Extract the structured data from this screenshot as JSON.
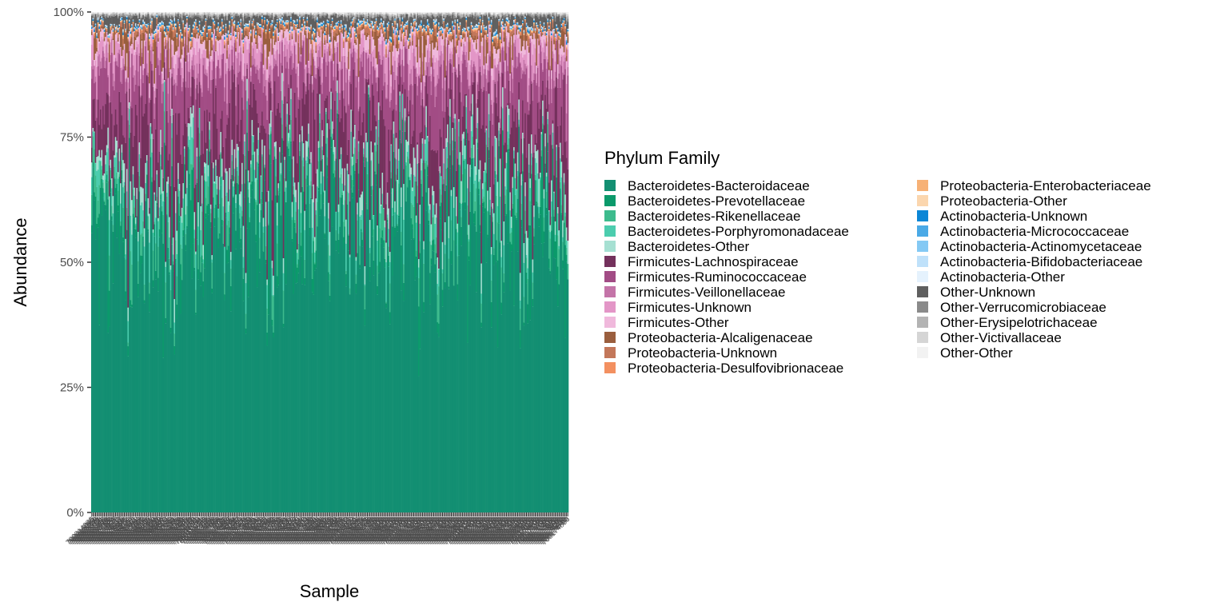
{
  "chart_data": {
    "type": "bar",
    "stacked": true,
    "xlabel": "Sample",
    "ylabel": "Abundance",
    "ylim": [
      0,
      1
    ],
    "y_tick_labels": [
      "0%",
      "25%",
      "50%",
      "75%",
      "100%"
    ],
    "y_ticks": [
      0,
      0.25,
      0.5,
      0.75,
      1
    ],
    "legend_title": "Phylum Family",
    "legend_placement": "right",
    "grid": false,
    "categories": [
      "700014886",
      "700015065",
      "700015181",
      "700015250",
      "700015346",
      "700015578",
      "700015721",
      "700015856",
      "700015981",
      "700016142",
      "700016305",
      "700016456",
      "700016610",
      "700016765",
      "700016960",
      "700017120",
      "700021306",
      "700021824",
      "700023057",
      "700023337",
      "700023578",
      "700023872",
      "700024233",
      "700024437",
      "700024615",
      "700024866",
      "700024998",
      "700033435",
      "700033922",
      "700034254",
      "700034622",
      "700034794",
      "700035157",
      "700035373",
      "700035533",
      "700035861",
      "700037042",
      "700037284",
      "700037539",
      "700037738",
      "700037868",
      "700038072",
      "700038594",
      "700038806",
      "700095213",
      "700095486",
      "700095717",
      "700095831",
      "700096047",
      "700096380",
      "700096700",
      "700097196",
      "700097688",
      "700097837",
      "700098429",
      "700098669",
      "700098986",
      "700099307",
      "700099512",
      "700099803",
      "700100227",
      "700100431",
      "700101534",
      "700101840",
      "700102043",
      "700102242",
      "700102431",
      "700102585",
      "700102905",
      "700103479",
      "700103710",
      "700105049",
      "700105306",
      "700105882",
      "700106198",
      "700106465",
      "700106663",
      "700106876",
      "700107059",
      "700107189",
      "700107547",
      "700107759",
      "700108160",
      "700108341",
      "700109173",
      "700109449",
      "700110354",
      "700110831",
      "700111156",
      "700111222",
      "700111439",
      "700111745",
      "700112312",
      "700112755",
      "700113546",
      "700113867",
      "700114168",
      "700114338",
      "700114478",
      "700114705",
      "700114963",
      "700117069",
      "700117395",
      "700117625",
      "700117755",
      "700117938",
      "700118252",
      "700119165",
      "700119307",
      "700119489",
      "700123827",
      "700124205",
      "700124405",
      "700124589",
      "700124794",
      "700125035",
      "700125190",
      "700125447",
      "700125584",
      "700125840",
      "700126021",
      "700126216",
      "700126340",
      "700126475",
      "700126668",
      "700127110",
      "700127360",
      "700127624",
      "700127808",
      "700128056",
      "700128231",
      "700128521",
      "700128738",
      "700128878",
      "700129054",
      "700129222",
      "700129523",
      "700129724",
      "700129922",
      "700130157",
      "700130401",
      "700130655",
      "700130886",
      "700131043",
      "700131290",
      "700131552",
      "700131752",
      "700131886",
      "700132100",
      "700132260",
      "700132493",
      "700132722",
      "700132935",
      "700133186",
      "700133390",
      "700133621",
      "700133767",
      "700134006",
      "700134195",
      "700134447",
      "700134622",
      "700134803",
      "700134979",
      "700135167",
      "700135340",
      "700135525",
      "700135721",
      "700135895",
      "700136087",
      "700136310",
      "700136570",
      "700136800",
      "700137014",
      "700137228",
      "700137410",
      "700137570",
      "700137779",
      "700137957",
      "700138189",
      "700138401",
      "700138598",
      "700138755",
      "700138951",
      "700139128",
      "700139326",
      "700139480",
      "700139685",
      "700139833",
      "700140016",
      "700140213",
      "700140448",
      "700140669",
      "700140855",
      "700141037",
      "700141240",
      "700141480",
      "700141645",
      "700141836",
      "700142033",
      "700142203",
      "700142392",
      "700142596",
      "700142778",
      "700142970",
      "700143163",
      "700143344",
      "700143512",
      "700143742",
      "700143909",
      "700144112",
      "700144326",
      "700144521",
      "700144702",
      "700144895",
      "700145088",
      "700145275",
      "700145443",
      "700145626",
      "700145796",
      "700145984",
      "700146170",
      "700146348",
      "700146530",
      "700146709",
      "700146890",
      "700147070",
      "700147250",
      "700147430",
      "700147610",
      "700147790",
      "700147970",
      "700148150",
      "700148330",
      "700148510",
      "700148690",
      "700148870",
      "700149050",
      "700149230",
      "700149410",
      "700149590",
      "700149770",
      "700149950",
      "700150130",
      "700150310",
      "700150490",
      "700150670",
      "700150850",
      "700151030",
      "700151210",
      "700151390",
      "700151570",
      "700151750",
      "700151930",
      "700152110",
      "700152290",
      "700152470",
      "700152650",
      "700152830",
      "700153010",
      "700153190",
      "700153370",
      "700153550",
      "700153730",
      "700153910",
      "700154090",
      "700154270",
      "700154450",
      "700154630",
      "700154810",
      "700154990",
      "700155170",
      "700155350",
      "700155530",
      "700155710",
      "700155890",
      "700156070",
      "700156250",
      "700156430",
      "700156610",
      "700156790",
      "700156970",
      "700157150",
      "700157330",
      "700157510",
      "700157690",
      "700157870",
      "700158050",
      "700158230",
      "700158410",
      "700158590",
      "700158770",
      "700158950",
      "700159130",
      "700159310",
      "700159490",
      "700159670",
      "700159850",
      "700160030",
      "700160210",
      "700160390",
      "700160570",
      "700160750",
      "700160930",
      "700161110",
      "700161290",
      "700161470",
      "700161650",
      "700161830",
      "700162010",
      "700162190",
      "700162370",
      "700162550",
      "700162730",
      "700162910",
      "700163090",
      "700163270",
      "700163450",
      "700163630",
      "700163810",
      "700163990",
      "700164170",
      "700164350",
      "700164530",
      "700164710",
      "700164890",
      "700165070",
      "700165250",
      "700165430",
      "700165610",
      "700165790",
      "700165970",
      "700166150",
      "700166330",
      "700166510",
      "700166690",
      "700166870",
      "700167050",
      "700167230",
      "700167410",
      "700167590",
      "700167770",
      "700167950",
      "700168130",
      "700168310",
      "700168490",
      "700168670",
      "700168850",
      "700169030",
      "700169210",
      "700169390",
      "700169570",
      "700169750",
      "700169930",
      "700170110",
      "700170290",
      "700170470",
      "700170650",
      "700170830",
      "700171010",
      "700171190",
      "700171370",
      "700171550",
      "700171730",
      "700171910",
      "700172090",
      "700172270",
      "700172450",
      "700172630",
      "700172810",
      "700172990",
      "700173170",
      "700173350",
      "700173530",
      "700173710",
      "700173890",
      "700174070",
      "700174250",
      "700174430",
      "700174610",
      "700174790",
      "700174850"
    ],
    "series": [
      {
        "name": "Bacteroidetes-Bacteroidaceae",
        "color": "#138f72"
      },
      {
        "name": "Bacteroidetes-Prevotellaceae",
        "color": "#0b9a6b"
      },
      {
        "name": "Bacteroidetes-Rikenellaceae",
        "color": "#3dbb8d"
      },
      {
        "name": "Bacteroidetes-Porphyromonadaceae",
        "color": "#4ccdae"
      },
      {
        "name": "Bacteroidetes-Other",
        "color": "#a6e0d2"
      },
      {
        "name": "Firmicutes-Lachnospiraceae",
        "color": "#74315c"
      },
      {
        "name": "Firmicutes-Ruminococcaceae",
        "color": "#a24c85"
      },
      {
        "name": "Firmicutes-Veillonellaceae",
        "color": "#c474a8"
      },
      {
        "name": "Firmicutes-Unknown",
        "color": "#e396c7"
      },
      {
        "name": "Firmicutes-Other",
        "color": "#f0b9dc"
      },
      {
        "name": "Proteobacteria-Alcaligenaceae",
        "color": "#9a5e3e"
      },
      {
        "name": "Proteobacteria-Unknown",
        "color": "#c3775a"
      },
      {
        "name": "Proteobacteria-Desulfovibrionaceae",
        "color": "#f39060"
      },
      {
        "name": "Proteobacteria-Enterobacteriaceae",
        "color": "#f7b176"
      },
      {
        "name": "Proteobacteria-Other",
        "color": "#fbd6ae"
      },
      {
        "name": "Actinobacteria-Unknown",
        "color": "#0b86d6"
      },
      {
        "name": "Actinobacteria-Micrococcaceae",
        "color": "#4aa9e6"
      },
      {
        "name": "Actinobacteria-Actinomycetaceae",
        "color": "#84c9f4"
      },
      {
        "name": "Actinobacteria-Bifidobacteriaceae",
        "color": "#bfe1fa"
      },
      {
        "name": "Actinobacteria-Other",
        "color": "#e5f2fd"
      },
      {
        "name": "Other-Unknown",
        "color": "#5f5f5f"
      },
      {
        "name": "Other-Verrucomicrobiaceae",
        "color": "#8a8a8a"
      },
      {
        "name": "Other-Erysipelotrichaceae",
        "color": "#b3b3b3"
      },
      {
        "name": "Other-Victivallaceae",
        "color": "#d5d5d5"
      },
      {
        "name": "Other-Other",
        "color": "#f2f2f2"
      }
    ]
  }
}
